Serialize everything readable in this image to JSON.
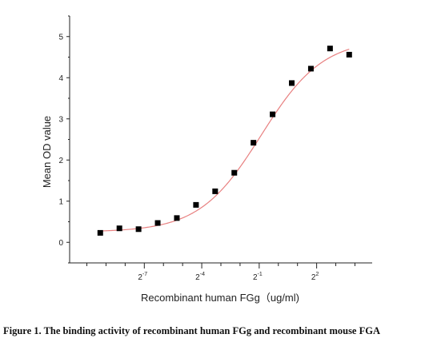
{
  "chart_data": {
    "type": "scatter",
    "xlabel": "Recombinant human  FGg（ug/ml)",
    "ylabel": "Mean OD value",
    "x_scale": "log2",
    "x_range_exponent": [
      -10.9,
      4.9
    ],
    "ylim": [
      -0.5,
      5.5
    ],
    "y_ticks": [
      0,
      1,
      2,
      3,
      4,
      5
    ],
    "x_tick_labels": [
      {
        "base": "2",
        "exp": "-7",
        "exponent": -7
      },
      {
        "base": "2",
        "exp": "-4",
        "exponent": -4
      },
      {
        "base": "2",
        "exp": "-1",
        "exponent": -1
      },
      {
        "base": "2",
        "exp": "2",
        "exponent": 2
      }
    ],
    "points": [
      {
        "exponent": -9.3,
        "y": 0.23
      },
      {
        "exponent": -8.3,
        "y": 0.34
      },
      {
        "exponent": -7.3,
        "y": 0.32
      },
      {
        "exponent": -6.3,
        "y": 0.47
      },
      {
        "exponent": -5.3,
        "y": 0.59
      },
      {
        "exponent": -4.3,
        "y": 0.91
      },
      {
        "exponent": -3.3,
        "y": 1.24
      },
      {
        "exponent": -2.3,
        "y": 1.69
      },
      {
        "exponent": -1.3,
        "y": 2.42
      },
      {
        "exponent": -0.3,
        "y": 3.11
      },
      {
        "exponent": 0.7,
        "y": 3.87
      },
      {
        "exponent": 1.7,
        "y": 4.22
      },
      {
        "exponent": 2.7,
        "y": 4.71
      },
      {
        "exponent": 3.7,
        "y": 4.56
      }
    ],
    "fit_curve": {
      "bottom": 0.25,
      "top": 4.95,
      "x50_exponent": -0.9,
      "slope": 0.62,
      "color": "#e88080"
    },
    "marker_color": "#000000",
    "grid": false
  },
  "caption": "Figure 1. The binding activity of recombinant human FGg and recombinant mouse FGA"
}
